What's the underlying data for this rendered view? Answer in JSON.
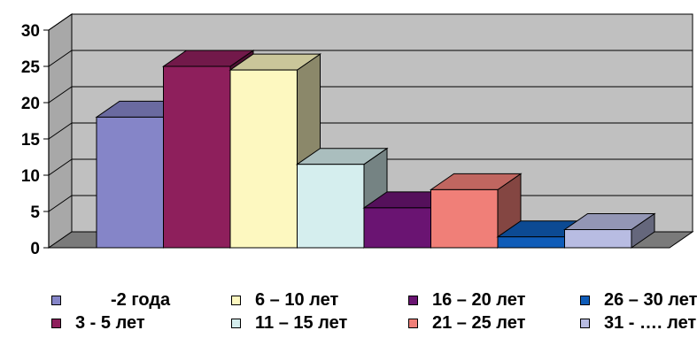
{
  "chart_data": {
    "type": "bar",
    "style": "3d",
    "ylim": [
      0,
      30
    ],
    "yticks": [
      "0",
      "5",
      "10",
      "15",
      "20",
      "25",
      "30"
    ],
    "grid": true,
    "legend_position": "bottom",
    "series": [
      {
        "name": "-2 года",
        "value": 18,
        "color": "#8585c8"
      },
      {
        "name": "3 - 5 лет",
        "value": 25,
        "color": "#8e1f5c"
      },
      {
        "name": "6 – 10 лет",
        "value": 24.5,
        "color": "#fdf8c0"
      },
      {
        "name": "11 – 15 лет",
        "value": 11.5,
        "color": "#d5eeee"
      },
      {
        "name": "16 – 20 лет",
        "value": 5.5,
        "color": "#6a1472"
      },
      {
        "name": "21 – 25 лет",
        "value": 8,
        "color": "#f07f78"
      },
      {
        "name": "26 – 30 лет",
        "value": 1.5,
        "color": "#0f5cb8"
      },
      {
        "name": "31 - …. лет",
        "value": 2.5,
        "color": "#b8bce2"
      }
    ]
  }
}
